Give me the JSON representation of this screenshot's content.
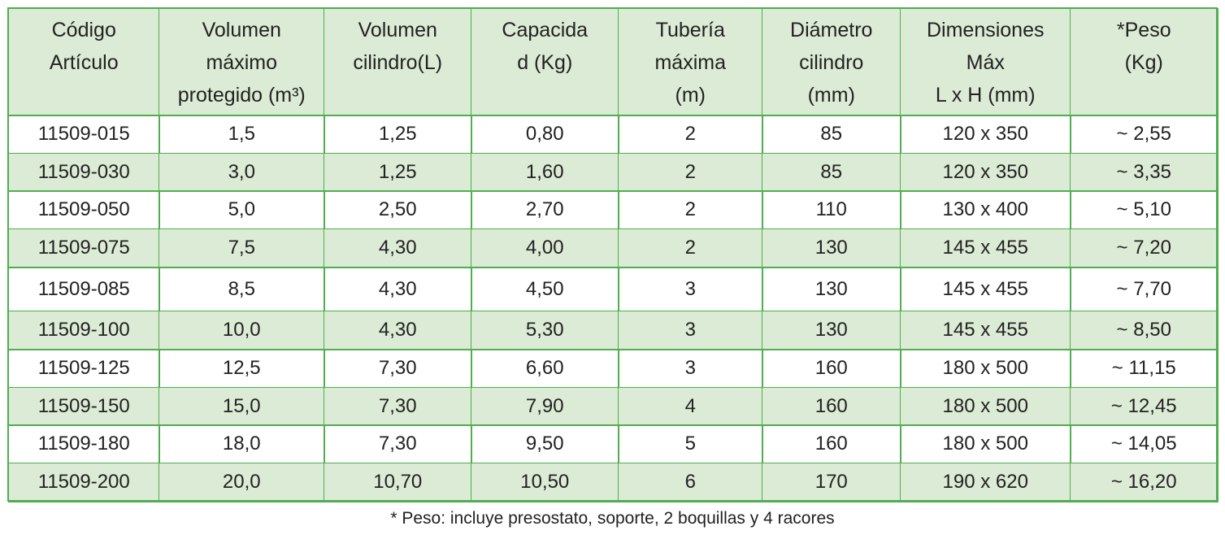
{
  "table": {
    "header": [
      [
        "Código",
        "Artículo"
      ],
      [
        "Volumen",
        "máximo",
        "protegido (m³)"
      ],
      [
        "Volumen",
        "cilindro(L)"
      ],
      [
        "Capacida",
        "d (Kg)"
      ],
      [
        "Tubería",
        "máxima",
        "(m)"
      ],
      [
        "Diámetro",
        "cilindro",
        "(mm)"
      ],
      [
        "Dimensiones",
        "Máx",
        "L x H (mm)"
      ],
      [
        "*Peso",
        "(Kg)"
      ]
    ],
    "rows": [
      [
        "11509-015",
        "1,5",
        "1,25",
        "0,80",
        "2",
        "85",
        "120 x 350",
        "~ 2,55"
      ],
      [
        "11509-030",
        "3,0",
        "1,25",
        "1,60",
        "2",
        "85",
        "120 x 350",
        "~ 3,35"
      ],
      [
        "11509-050",
        "5,0",
        "2,50",
        "2,70",
        "2",
        "110",
        "130 x 400",
        "~ 5,10"
      ],
      [
        "11509-075",
        "7,5",
        "4,30",
        "4,00",
        "2",
        "130",
        "145 x 455",
        "~ 7,20"
      ],
      [
        "11509-085",
        "8,5",
        "4,30",
        "4,50",
        "3",
        "130",
        "145 x 455",
        "~ 7,70"
      ],
      [
        "11509-100",
        "10,0",
        "4,30",
        "5,30",
        "3",
        "130",
        "145 x 455",
        "~ 8,50"
      ],
      [
        "11509-125",
        "12,5",
        "7,30",
        "6,60",
        "3",
        "160",
        "180 x 500",
        "~ 11,15"
      ],
      [
        "11509-150",
        "15,0",
        "7,30",
        "7,90",
        "4",
        "160",
        "180 x 500",
        "~ 12,45"
      ],
      [
        "11509-180",
        "18,0",
        "7,30",
        "9,50",
        "5",
        "160",
        "180 x 500",
        "~ 14,05"
      ],
      [
        "11509-200",
        "20,0",
        "10,70",
        "10,50",
        "6",
        "170",
        "190 x 620",
        "~ 16,20"
      ]
    ]
  },
  "footnote": "* Peso: incluye presostato, soporte, 2 boquillas y 4 racores"
}
